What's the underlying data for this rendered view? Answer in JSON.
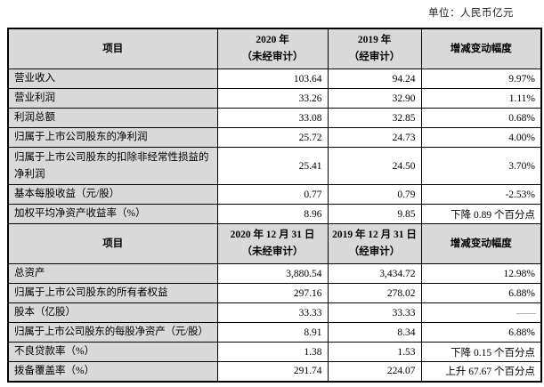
{
  "unit_label": "单位：人民币亿元",
  "colors": {
    "header_bg": "#d9d9d9",
    "label_bg": "#d9d9d9",
    "border": "#000000",
    "dash_text": "#7f7f7f",
    "page_bg": "#ffffff"
  },
  "table1": {
    "header": {
      "item": "项目",
      "col2020_line1": "2020 年",
      "col2020_line2": "（未经审计）",
      "col2019_line1": "2019 年",
      "col2019_line2": "（经审计）",
      "change": "增减变动幅度"
    },
    "rows": [
      {
        "label": "营业收入",
        "v2020": "103.64",
        "v2019": "94.24",
        "change": "9.97%"
      },
      {
        "label": "营业利润",
        "v2020": "33.26",
        "v2019": "32.90",
        "change": "1.11%"
      },
      {
        "label": "利润总额",
        "v2020": "33.08",
        "v2019": "32.85",
        "change": "0.68%"
      },
      {
        "label": "归属于上市公司股东的净利润",
        "v2020": "25.72",
        "v2019": "24.73",
        "change": "4.00%"
      },
      {
        "label": "归属于上市公司股东的扣除非经常性损益的净利润",
        "v2020": "25.41",
        "v2019": "24.50",
        "change": "3.70%"
      },
      {
        "label": "基本每股收益（元/股）",
        "v2020": "0.77",
        "v2019": "0.79",
        "change": "-2.53%"
      },
      {
        "label": "加权平均净资产收益率（%）",
        "v2020": "8.96",
        "v2019": "9.85",
        "change": "下降 0.89 个百分点"
      }
    ]
  },
  "table2": {
    "header": {
      "item": "项目",
      "col2020_line1": "2020 年 12 月 31 日",
      "col2020_line2": "（未经审计）",
      "col2019_line1": "2019 年 12 月 31 日",
      "col2019_line2": "（经审计）",
      "change": "增减变动幅度"
    },
    "rows": [
      {
        "label": "总资产",
        "v2020": "3,880.54",
        "v2019": "3,434.72",
        "change": "12.98%"
      },
      {
        "label": "归属于上市公司股东的所有者权益",
        "v2020": "297.16",
        "v2019": "278.02",
        "change": "6.88%"
      },
      {
        "label": "股本（亿股）",
        "v2020": "33.33",
        "v2019": "33.33",
        "change": "——"
      },
      {
        "label": "归属于上市公司股东的每股净资产（元/股）",
        "v2020": "8.91",
        "v2019": "8.34",
        "change": "6.88%"
      },
      {
        "label": "不良贷款率（%）",
        "v2020": "1.38",
        "v2019": "1.53",
        "change": "下降 0.15 个百分点"
      },
      {
        "label": "拨备覆盖率（%）",
        "v2020": "291.74",
        "v2019": "224.07",
        "change": "上升 67.67 个百分点"
      }
    ]
  }
}
